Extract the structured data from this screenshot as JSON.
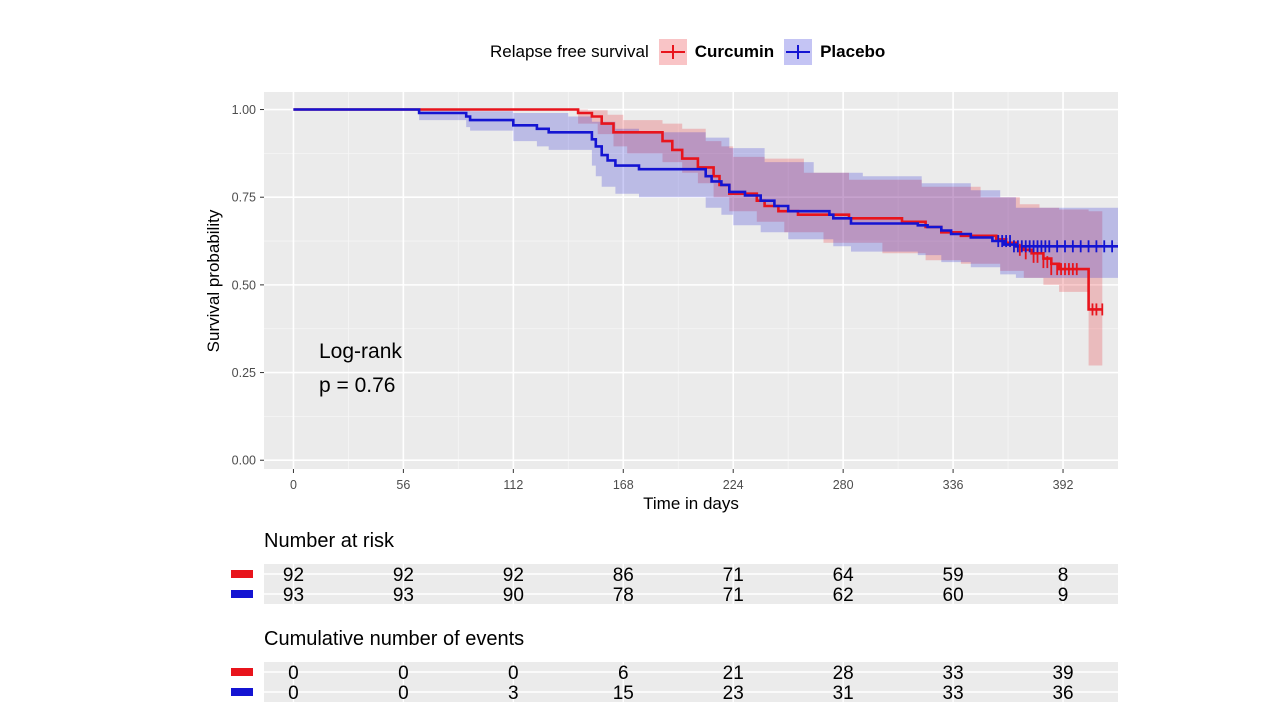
{
  "chart_data": {
    "type": "line",
    "subtype": "kaplan-meier",
    "legend": {
      "title": "Relapse free survival",
      "placement": "top",
      "entries": [
        "Curcumin",
        "Placebo"
      ]
    },
    "xlabel": "Time in days",
    "ylabel": "Survival probability",
    "xlim": [
      -15,
      420
    ],
    "ylim": [
      -0.025,
      1.05
    ],
    "xticks": [
      0,
      56,
      112,
      168,
      224,
      280,
      336,
      392
    ],
    "yticks": [
      0,
      0.25,
      0.5,
      0.75,
      1.0
    ],
    "ytick_labels": [
      "0.00",
      "0.25",
      "0.50",
      "0.75",
      "1.00"
    ],
    "grid": true,
    "annotation": [
      "Log-rank",
      "p = 0.76"
    ],
    "series": [
      {
        "name": "Curcumin",
        "color": "#e8141c",
        "steps": [
          [
            0,
            1.0
          ],
          [
            145,
            0.99
          ],
          [
            152,
            0.98
          ],
          [
            157,
            0.96
          ],
          [
            163,
            0.935
          ],
          [
            188,
            0.91
          ],
          [
            193,
            0.885
          ],
          [
            198,
            0.86
          ],
          [
            206,
            0.835
          ],
          [
            214,
            0.81
          ],
          [
            217,
            0.785
          ],
          [
            222,
            0.76
          ],
          [
            236,
            0.74
          ],
          [
            240,
            0.725
          ],
          [
            247,
            0.71
          ],
          [
            257,
            0.7
          ],
          [
            283,
            0.69
          ],
          [
            310,
            0.68
          ],
          [
            322,
            0.665
          ],
          [
            330,
            0.65
          ],
          [
            340,
            0.64
          ],
          [
            358,
            0.63
          ],
          [
            363,
            0.62
          ],
          [
            368,
            0.61
          ],
          [
            372,
            0.6
          ],
          [
            376,
            0.59
          ],
          [
            382,
            0.575
          ],
          [
            386,
            0.56
          ],
          [
            390,
            0.545
          ],
          [
            405,
            0.43
          ],
          [
            412,
            0.43
          ]
        ],
        "upper": [
          [
            0,
            1.0
          ],
          [
            145,
            1.0
          ],
          [
            150,
            0.998
          ],
          [
            160,
            0.985
          ],
          [
            168,
            0.97
          ],
          [
            188,
            0.96
          ],
          [
            198,
            0.945
          ],
          [
            210,
            0.91
          ],
          [
            218,
            0.895
          ],
          [
            224,
            0.865
          ],
          [
            240,
            0.86
          ],
          [
            260,
            0.82
          ],
          [
            283,
            0.8
          ],
          [
            320,
            0.78
          ],
          [
            350,
            0.75
          ],
          [
            370,
            0.73
          ],
          [
            380,
            0.72
          ],
          [
            390,
            0.715
          ],
          [
            405,
            0.71
          ],
          [
            412,
            0.71
          ]
        ],
        "lower": [
          [
            0,
            1.0
          ],
          [
            145,
            0.96
          ],
          [
            155,
            0.93
          ],
          [
            163,
            0.895
          ],
          [
            170,
            0.875
          ],
          [
            188,
            0.85
          ],
          [
            198,
            0.82
          ],
          [
            206,
            0.79
          ],
          [
            214,
            0.75
          ],
          [
            222,
            0.71
          ],
          [
            236,
            0.68
          ],
          [
            250,
            0.65
          ],
          [
            270,
            0.62
          ],
          [
            300,
            0.59
          ],
          [
            322,
            0.57
          ],
          [
            340,
            0.56
          ],
          [
            360,
            0.54
          ],
          [
            372,
            0.52
          ],
          [
            382,
            0.5
          ],
          [
            390,
            0.48
          ],
          [
            405,
            0.27
          ],
          [
            412,
            0.27
          ]
        ],
        "censored": [
          [
            370,
            0.6
          ],
          [
            373,
            0.59
          ],
          [
            377,
            0.58
          ],
          [
            379,
            0.58
          ],
          [
            382,
            0.565
          ],
          [
            384,
            0.565
          ],
          [
            386,
            0.545
          ],
          [
            389,
            0.545
          ],
          [
            391,
            0.545
          ],
          [
            393,
            0.545
          ],
          [
            395,
            0.545
          ],
          [
            397,
            0.545
          ],
          [
            399,
            0.545
          ],
          [
            407,
            0.43
          ],
          [
            409,
            0.43
          ],
          [
            412,
            0.43
          ]
        ]
      },
      {
        "name": "Placebo",
        "color": "#1414d2",
        "steps": [
          [
            0,
            1.0
          ],
          [
            64,
            0.99
          ],
          [
            88,
            0.98
          ],
          [
            90,
            0.97
          ],
          [
            112,
            0.955
          ],
          [
            124,
            0.945
          ],
          [
            130,
            0.935
          ],
          [
            152,
            0.915
          ],
          [
            154,
            0.895
          ],
          [
            157,
            0.87
          ],
          [
            160,
            0.855
          ],
          [
            164,
            0.84
          ],
          [
            176,
            0.83
          ],
          [
            210,
            0.81
          ],
          [
            213,
            0.795
          ],
          [
            218,
            0.785
          ],
          [
            222,
            0.765
          ],
          [
            230,
            0.755
          ],
          [
            238,
            0.74
          ],
          [
            245,
            0.725
          ],
          [
            252,
            0.71
          ],
          [
            273,
            0.7
          ],
          [
            275,
            0.69
          ],
          [
            284,
            0.675
          ],
          [
            318,
            0.67
          ],
          [
            323,
            0.665
          ],
          [
            330,
            0.655
          ],
          [
            335,
            0.645
          ],
          [
            345,
            0.635
          ],
          [
            356,
            0.625
          ],
          [
            362,
            0.615
          ],
          [
            368,
            0.61
          ],
          [
            420,
            0.61
          ]
        ],
        "upper": [
          [
            0,
            1.0
          ],
          [
            64,
            1.0
          ],
          [
            90,
            0.995
          ],
          [
            112,
            0.99
          ],
          [
            140,
            0.98
          ],
          [
            152,
            0.965
          ],
          [
            164,
            0.945
          ],
          [
            176,
            0.935
          ],
          [
            210,
            0.92
          ],
          [
            222,
            0.89
          ],
          [
            240,
            0.85
          ],
          [
            265,
            0.82
          ],
          [
            290,
            0.81
          ],
          [
            320,
            0.79
          ],
          [
            345,
            0.77
          ],
          [
            360,
            0.75
          ],
          [
            368,
            0.72
          ],
          [
            420,
            0.72
          ]
        ],
        "lower": [
          [
            0,
            1.0
          ],
          [
            64,
            0.97
          ],
          [
            88,
            0.95
          ],
          [
            90,
            0.94
          ],
          [
            112,
            0.91
          ],
          [
            124,
            0.895
          ],
          [
            130,
            0.885
          ],
          [
            152,
            0.84
          ],
          [
            154,
            0.81
          ],
          [
            157,
            0.78
          ],
          [
            164,
            0.76
          ],
          [
            176,
            0.75
          ],
          [
            210,
            0.72
          ],
          [
            218,
            0.7
          ],
          [
            224,
            0.67
          ],
          [
            238,
            0.65
          ],
          [
            252,
            0.63
          ],
          [
            275,
            0.61
          ],
          [
            284,
            0.595
          ],
          [
            318,
            0.585
          ],
          [
            330,
            0.565
          ],
          [
            345,
            0.55
          ],
          [
            360,
            0.53
          ],
          [
            368,
            0.52
          ],
          [
            420,
            0.52
          ]
        ],
        "censored": [
          [
            359,
            0.625
          ],
          [
            361,
            0.625
          ],
          [
            363,
            0.625
          ],
          [
            365,
            0.625
          ],
          [
            367,
            0.61
          ],
          [
            369,
            0.61
          ],
          [
            371,
            0.61
          ],
          [
            373,
            0.61
          ],
          [
            375,
            0.61
          ],
          [
            377,
            0.61
          ],
          [
            379,
            0.61
          ],
          [
            381,
            0.61
          ],
          [
            383,
            0.61
          ],
          [
            385,
            0.61
          ],
          [
            389,
            0.61
          ],
          [
            393,
            0.61
          ],
          [
            397,
            0.61
          ],
          [
            401,
            0.61
          ],
          [
            405,
            0.61
          ],
          [
            409,
            0.61
          ],
          [
            413,
            0.61
          ],
          [
            417,
            0.61
          ]
        ]
      }
    ]
  },
  "risk_table": {
    "title": "Number at risk",
    "rows": [
      {
        "group": "Curcumin",
        "color": "#e8141c",
        "values": [
          "92",
          "92",
          "92",
          "86",
          "71",
          "64",
          "59",
          "8"
        ]
      },
      {
        "group": "Placebo",
        "color": "#1414d2",
        "values": [
          "93",
          "93",
          "90",
          "78",
          "71",
          "62",
          "60",
          "9"
        ]
      }
    ]
  },
  "events_table": {
    "title": "Cumulative number of events",
    "rows": [
      {
        "group": "Curcumin",
        "color": "#e8141c",
        "values": [
          "0",
          "0",
          "0",
          "6",
          "21",
          "28",
          "33",
          "39"
        ]
      },
      {
        "group": "Placebo",
        "color": "#1414d2",
        "values": [
          "0",
          "0",
          "3",
          "15",
          "23",
          "31",
          "33",
          "36"
        ]
      }
    ]
  }
}
